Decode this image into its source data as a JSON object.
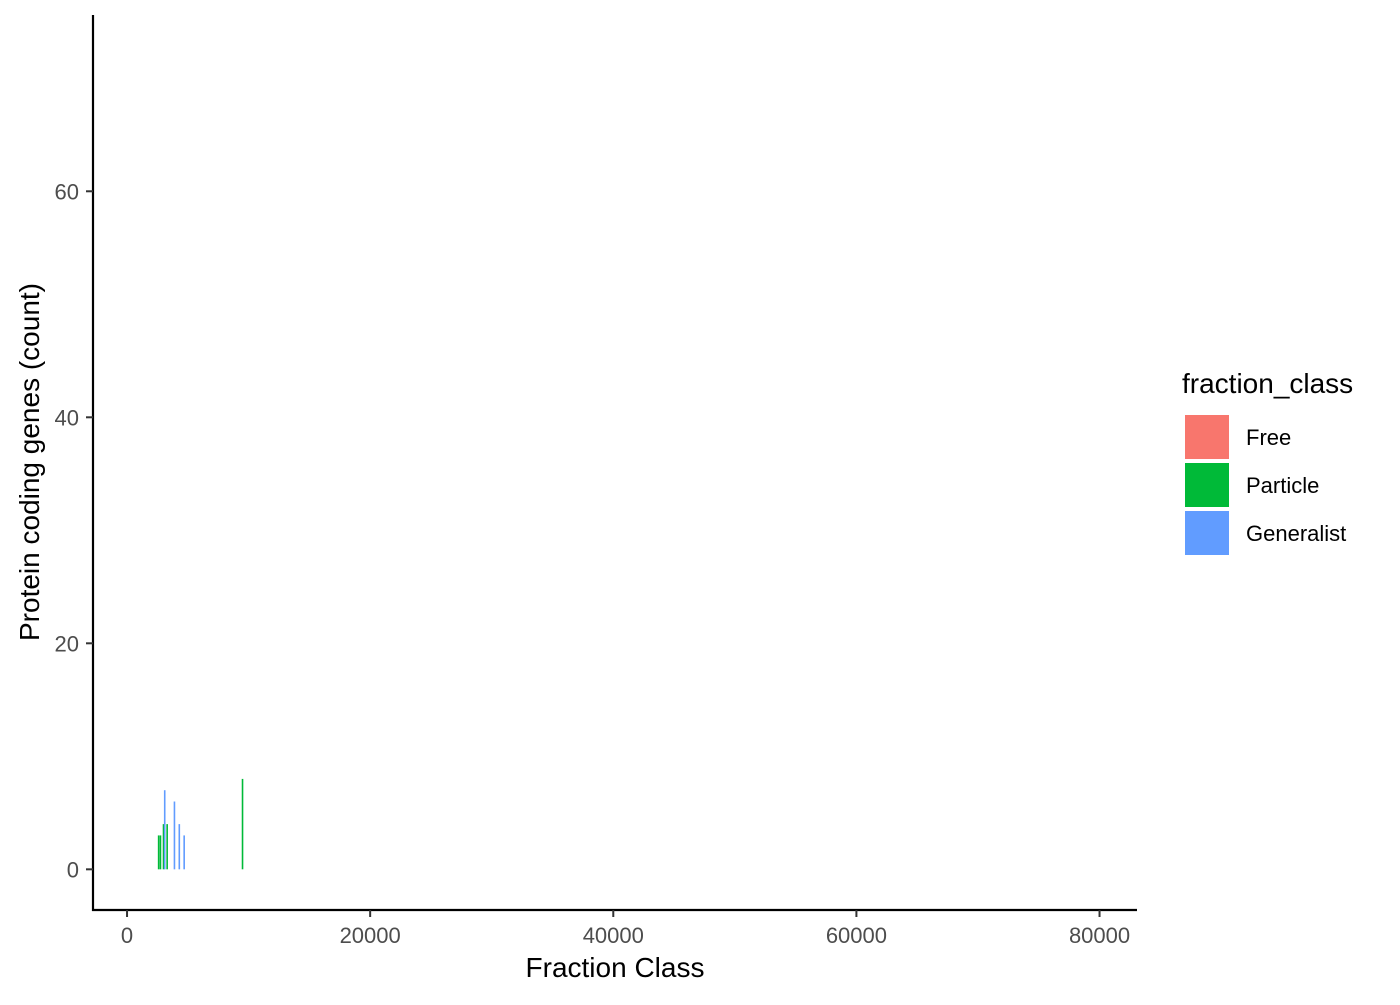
{
  "chart_data": {
    "type": "bar",
    "xlabel": "Fraction Class",
    "ylabel": "Protein coding genes (count)",
    "xlim": [
      -2800,
      83000
    ],
    "ylim": [
      -3.6,
      75.6
    ],
    "x_ticks": [
      0,
      20000,
      40000,
      60000,
      80000
    ],
    "x_tick_labels": [
      "0",
      "20000",
      "40000",
      "60000",
      "80000"
    ],
    "y_ticks": [
      0,
      20,
      40,
      60
    ],
    "y_tick_labels": [
      "0",
      "20",
      "40",
      "60"
    ],
    "grid": false,
    "legend": {
      "title": "fraction_class",
      "position": "right",
      "entries": [
        {
          "label": "Free",
          "color": "#F8766D"
        },
        {
          "label": "Particle",
          "color": "#00BA38"
        },
        {
          "label": "Generalist",
          "color": "#619CFF"
        }
      ]
    },
    "series": [
      {
        "name": "Particle",
        "color": "#00BA38",
        "points": [
          {
            "x": 2600,
            "y": 3
          },
          {
            "x": 2750,
            "y": 3
          },
          {
            "x": 3000,
            "y": 4
          },
          {
            "x": 3300,
            "y": 4
          },
          {
            "x": 9500,
            "y": 8
          }
        ]
      },
      {
        "name": "Generalist",
        "color": "#619CFF",
        "points": [
          {
            "x": 3100,
            "y": 7
          },
          {
            "x": 3900,
            "y": 6
          },
          {
            "x": 4300,
            "y": 4
          },
          {
            "x": 4700,
            "y": 3
          }
        ]
      }
    ]
  }
}
